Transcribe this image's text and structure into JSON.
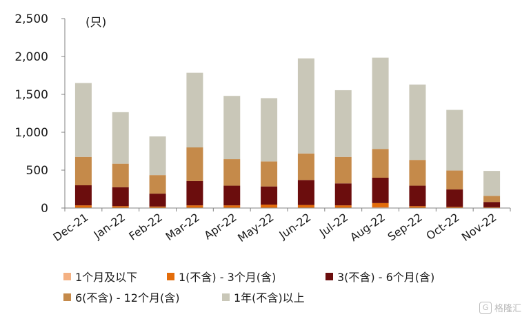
{
  "chart_data": {
    "type": "bar",
    "stacked": true,
    "unit_label": "(只)",
    "categories": [
      "Dec-21",
      "Jan-22",
      "Feb-22",
      "Mar-22",
      "Apr-22",
      "May-22",
      "Jun-22",
      "Jul-22",
      "Aug-22",
      "Sep-22",
      "Oct-22",
      "Nov-22"
    ],
    "ylim": [
      0,
      2500
    ],
    "yticks": [
      "0",
      "500",
      "1,000",
      "1,500",
      "2,000",
      "2,500"
    ],
    "grid": false,
    "legend_position": "bottom",
    "series": [
      {
        "name": "1个月及以下",
        "color": "#f4b183",
        "values": [
          5,
          5,
          5,
          5,
          5,
          5,
          5,
          5,
          10,
          5,
          3,
          2
        ]
      },
      {
        "name": "1(不含) - 3个月(含)",
        "color": "#e36c0a",
        "values": [
          30,
          20,
          15,
          30,
          30,
          40,
          35,
          30,
          55,
          20,
          12,
          8
        ]
      },
      {
        "name": "3(不含) - 6个月(含)",
        "color": "#6b0d0d",
        "values": [
          265,
          250,
          170,
          320,
          260,
          240,
          330,
          290,
          335,
          270,
          230,
          70
        ]
      },
      {
        "name": "6(不含) - 12个月(含)",
        "color": "#c58a4a",
        "values": [
          375,
          310,
          245,
          445,
          350,
          330,
          350,
          350,
          380,
          340,
          250,
          80
        ]
      },
      {
        "name": "1年(不含)以上",
        "color": "#c9c7b8",
        "values": [
          975,
          680,
          510,
          985,
          835,
          835,
          1255,
          880,
          1205,
          995,
          800,
          330
        ]
      }
    ]
  },
  "legend": {
    "items": [
      {
        "label": "1个月及以下",
        "color": "#f4b183"
      },
      {
        "label": "1(不含) - 3个月(含)",
        "color": "#e36c0a"
      },
      {
        "label": "3(不含) - 6个月(含)",
        "color": "#6b0d0d"
      },
      {
        "label": "6(不含) - 12个月(含)",
        "color": "#c58a4a"
      },
      {
        "label": "1年(不含)以上",
        "color": "#c9c7b8"
      }
    ]
  },
  "watermark": {
    "icon": "G",
    "text": "格隆汇"
  }
}
